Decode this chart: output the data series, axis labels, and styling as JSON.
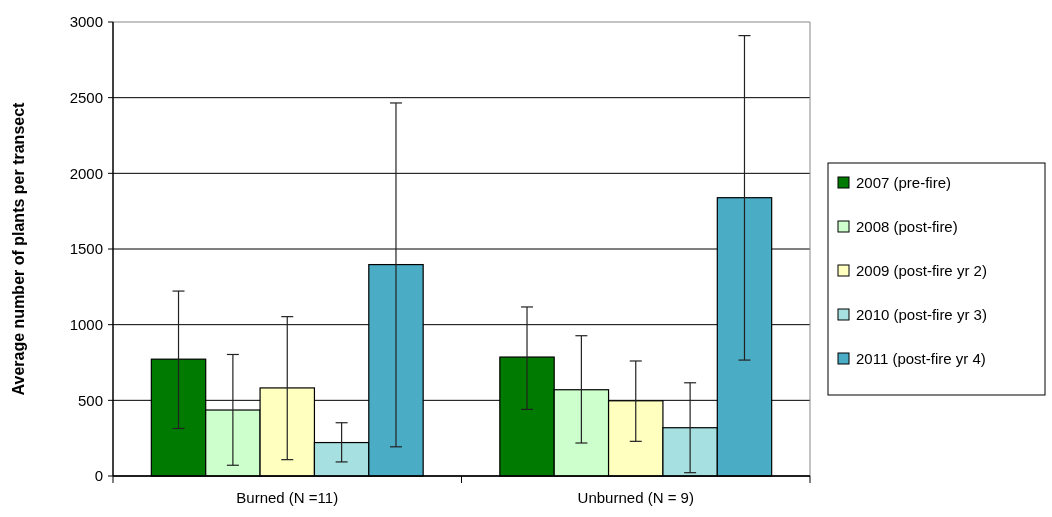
{
  "chart_data": {
    "type": "bar",
    "ylabel": "Average number of plants per transect",
    "categories": [
      "Burned (N =11)",
      "Unburned (N = 9)"
    ],
    "series": [
      {
        "name": "2007 (pre-fire)",
        "color": "#007a00",
        "values": [
          772,
          786
        ],
        "errors": [
          [
            314,
            1222
          ],
          [
            440,
            1117
          ]
        ]
      },
      {
        "name": "2008 (post-fire)",
        "color": "#ccffcc",
        "values": [
          436,
          570
        ],
        "errors": [
          [
            71,
            803
          ],
          [
            218,
            927
          ]
        ]
      },
      {
        "name": "2009 (post-fire yr 2)",
        "color": "#ffffc0",
        "values": [
          582,
          497
        ],
        "errors": [
          [
            108,
            1053
          ],
          [
            229,
            760
          ]
        ]
      },
      {
        "name": "2010 (post-fire yr 3)",
        "color": "#a6e0e0",
        "values": [
          221,
          319
        ],
        "errors": [
          [
            93,
            352
          ],
          [
            22,
            616
          ]
        ]
      },
      {
        "name": "2011 (post-fire yr 4)",
        "color": "#4bacc6",
        "values": [
          1397,
          1839
        ],
        "errors": [
          [
            193,
            2465
          ],
          [
            766,
            2910
          ]
        ]
      }
    ],
    "ylim": [
      0,
      3000
    ],
    "yticks": [
      0,
      500,
      1000,
      1500,
      2000,
      2500,
      3000
    ],
    "grid": "y",
    "legend": "right"
  }
}
